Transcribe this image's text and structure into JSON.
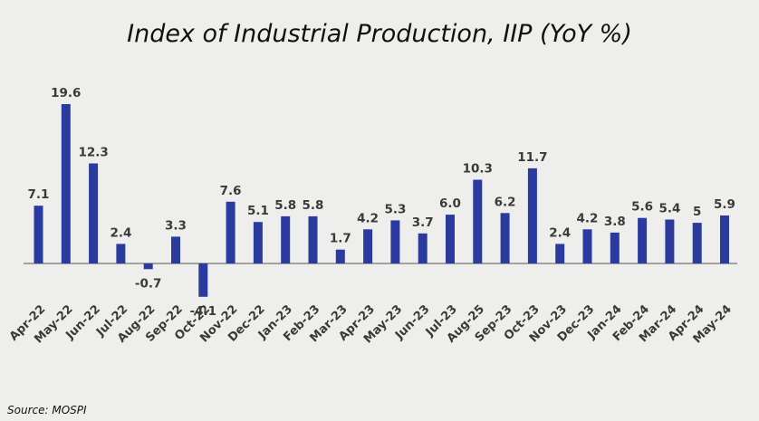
{
  "colors": {
    "bar": "#2b3a9e",
    "axis": "#888888",
    "background": "#eeeeec"
  },
  "chart_data": {
    "type": "bar",
    "title": "Index of Industrial Production, IIP (YoY %)",
    "source": "Source: MOSPI",
    "xlabel": "",
    "ylabel": "",
    "ylim": [
      -5,
      21
    ],
    "grid": false,
    "categories": [
      "Apr-22",
      "May-22",
      "Jun-22",
      "Jul-22",
      "Aug-22",
      "Sep-22",
      "Oct-22",
      "Nov-22",
      "Dec-22",
      "Jan-23",
      "Feb-23",
      "Mar-23",
      "Apr-23",
      "May-23",
      "Jun-23",
      "Jul-23",
      "Aug-25",
      "Sep-23",
      "Oct-23",
      "Nov-23",
      "Dec-23",
      "Jan-24",
      "Feb-24",
      "Mar-24",
      "Apr-24",
      "May-24"
    ],
    "values": [
      7.1,
      19.6,
      12.3,
      2.4,
      -0.7,
      3.3,
      -4.1,
      7.6,
      5.1,
      5.8,
      5.8,
      1.7,
      4.2,
      5.3,
      3.7,
      6.0,
      10.3,
      6.2,
      11.7,
      2.4,
      4.2,
      3.8,
      5.6,
      5.4,
      5,
      5.9
    ],
    "labels": [
      "7.1",
      "19.6",
      "12.3",
      "2.4",
      "-0.7",
      "3.3",
      "-4.1",
      "7.6",
      "5.1",
      "5.8",
      "5.8",
      "1.7",
      "4.2",
      "5.3",
      "3.7",
      "6.0",
      "10.3",
      "6.2",
      "11.7",
      "2.4",
      "4.2",
      "3.8",
      "5.6",
      "5.4",
      "5",
      "5.9"
    ]
  }
}
